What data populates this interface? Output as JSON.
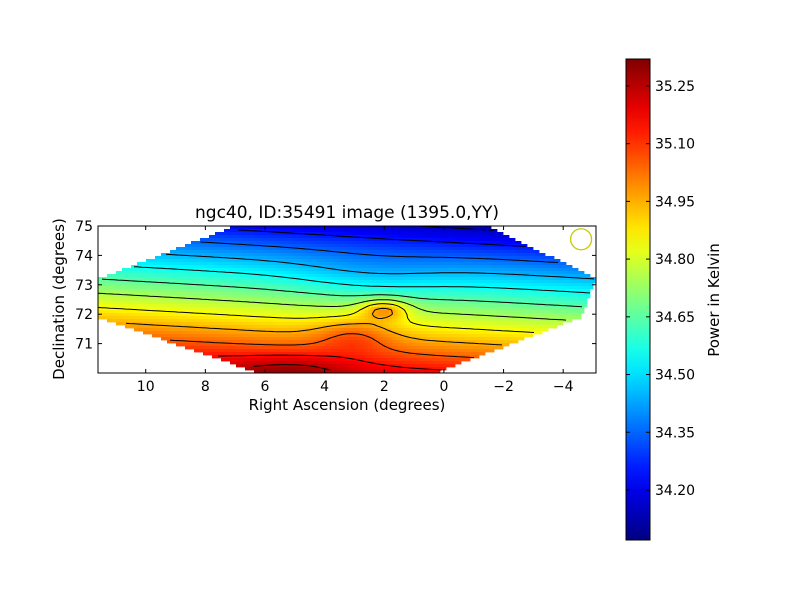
{
  "chart_data": {
    "type": "heatmap",
    "title": "ngc40, ID:35491 image (1395.0,YY)",
    "xlabel": "Right Ascension (degrees)",
    "ylabel": "Declination (degrees)",
    "x_ticks": [
      "10",
      "8",
      "6",
      "4",
      "2",
      "0",
      "−2",
      "−4"
    ],
    "x_tick_values": [
      10,
      8,
      6,
      4,
      2,
      0,
      -2,
      -4
    ],
    "y_ticks": [
      "71",
      "72",
      "73",
      "74",
      "75"
    ],
    "y_tick_values": [
      71,
      72,
      73,
      74,
      75
    ],
    "xlim": [
      11.6,
      -5.1
    ],
    "ylim": [
      70.0,
      75.0
    ],
    "x_reversed": true,
    "colorbar": {
      "label": "Power in Kelvin",
      "ticks": [
        "34.20",
        "34.35",
        "34.50",
        "34.65",
        "34.80",
        "34.95",
        "35.10",
        "35.25"
      ],
      "tick_values": [
        34.2,
        34.35,
        34.5,
        34.65,
        34.8,
        34.95,
        35.1,
        35.25
      ],
      "range": [
        34.07,
        35.32
      ],
      "colormap": "jet"
    },
    "field_outline": [
      [
        7.0,
        75.0
      ],
      [
        -1.5,
        75.0
      ],
      [
        -5.1,
        73.2
      ],
      [
        -4.6,
        71.9
      ],
      [
        0.3,
        70.0
      ],
      [
        6.2,
        70.0
      ],
      [
        11.6,
        71.9
      ],
      [
        11.6,
        73.2
      ]
    ],
    "value_model": {
      "gradient_intercept": 34.14,
      "gradient_slope": 0.206,
      "gradient_ref_dec": 75.0,
      "gradient_ra_coeff": 0.012,
      "blobs": [
        {
          "ra": 2.0,
          "dec": 72.15,
          "amp": 0.22,
          "sx": 0.8,
          "sy": 0.35
        },
        {
          "ra": 3.0,
          "dec": 71.3,
          "amp": 0.12,
          "sx": 1.3,
          "sy": 0.6
        },
        {
          "ra": 5.0,
          "dec": 70.2,
          "amp": 0.08,
          "sx": 2.0,
          "sy": 0.5
        },
        {
          "ra": 2.5,
          "dec": 73.3,
          "amp": -0.05,
          "sx": 2.5,
          "sy": 0.8
        }
      ]
    },
    "beam_marker": {
      "ra": -4.6,
      "dec": 74.55,
      "color": "#c8c800"
    },
    "contour_levels": [
      34.15,
      34.25,
      34.35,
      34.45,
      34.55,
      34.65,
      34.75,
      34.85,
      34.95,
      35.05,
      35.15,
      35.25
    ],
    "contour_color": "#000000"
  }
}
